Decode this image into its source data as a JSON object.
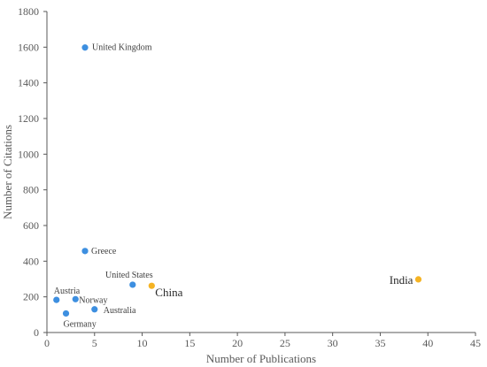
{
  "chart_data": {
    "type": "scatter",
    "title": "",
    "xlabel": "Number of Publications",
    "ylabel": "Number of Citations",
    "xlim": [
      0,
      45
    ],
    "ylim": [
      0,
      1800
    ],
    "xticks": [
      0,
      5,
      10,
      15,
      20,
      25,
      30,
      35,
      40,
      45
    ],
    "yticks": [
      0,
      200,
      400,
      600,
      800,
      1000,
      1200,
      1400,
      1600,
      1800
    ],
    "grid": false,
    "colors": {
      "default": "#3d8fe0",
      "highlight": "#f5b323",
      "axis": "#595959"
    },
    "points": [
      {
        "label": "United Kingdom",
        "x": 4,
        "y": 1598,
        "color": "#3d8fe0"
      },
      {
        "label": "Greece",
        "x": 4,
        "y": 457,
        "color": "#3d8fe0"
      },
      {
        "label": "United States",
        "x": 9,
        "y": 268,
        "color": "#3d8fe0"
      },
      {
        "label": "China",
        "x": 11,
        "y": 262,
        "color": "#f5b323"
      },
      {
        "label": "India",
        "x": 39,
        "y": 298,
        "color": "#f5b323"
      },
      {
        "label": "Austria",
        "x": 1,
        "y": 183,
        "color": "#3d8fe0"
      },
      {
        "label": "Norway",
        "x": 3,
        "y": 187,
        "color": "#3d8fe0"
      },
      {
        "label": "Australia",
        "x": 5,
        "y": 130,
        "color": "#3d8fe0"
      },
      {
        "label": "Germany",
        "x": 2,
        "y": 107,
        "color": "#3d8fe0"
      }
    ]
  }
}
